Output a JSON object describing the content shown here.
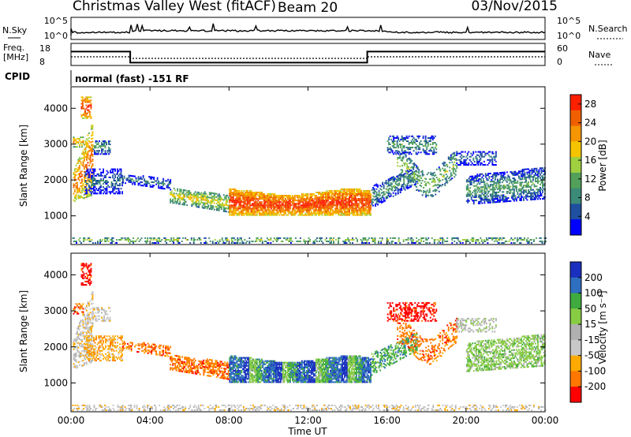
{
  "header": {
    "station": "Christmas Valley West (fitACF)",
    "beam": "Beam 20",
    "date": "03/Nov/2015"
  },
  "noise_panel": {
    "left_label": "N.Sky",
    "right_label": "N.Search",
    "left_ticks": [
      "10^5",
      "10^0"
    ],
    "right_ticks": [
      "10^5",
      "10^0"
    ]
  },
  "freq_panel": {
    "left_label_1": "Freq.",
    "left_label_2": "[MHz]",
    "right_label": "Nave",
    "left_ticks": [
      "18",
      "8"
    ],
    "right_ticks": [
      "60",
      "0"
    ]
  },
  "cpid": {
    "label": "CPID",
    "value": "normal (fast) -151 RF"
  },
  "colors": {
    "power_scale": [
      "#0000ff",
      "#1f4f9f",
      "#3c8a78",
      "#52a05a",
      "#9ed040",
      "#f5c400",
      "#f59600",
      "#f06000",
      "#ff2000"
    ],
    "velocity_scale": [
      "#ff0000",
      "#ff7700",
      "#ffaa00",
      "#c8c8c8",
      "#b0b0b0",
      "#88cc44",
      "#3faa3f",
      "#2f6fbf",
      "#1a2fbf"
    ]
  },
  "chart_data": [
    {
      "type": "heatmap",
      "name_text": "Power panel",
      "ylabel": "Slant Range [km]",
      "yticks": [
        "1000",
        "2000",
        "3000",
        "4000"
      ],
      "ylim": [
        200,
        4600
      ],
      "xlim": [
        "00:00",
        "24:00"
      ],
      "colorbar_label": "Power [dB]",
      "colorbar_ticks": [
        "28",
        "24",
        "20",
        "16",
        "12",
        "8",
        "4"
      ],
      "colorbar_range": [
        0,
        30
      ]
    },
    {
      "type": "heatmap",
      "name_text": "Velocity panel",
      "ylabel": "Slant Range [km]",
      "yticks": [
        "1000",
        "2000",
        "3000",
        "4000"
      ],
      "ylim": [
        200,
        4600
      ],
      "xlim": [
        "00:00",
        "24:00"
      ],
      "xticks": [
        "00:00",
        "04:00",
        "08:00",
        "12:00",
        "16:00",
        "20:00",
        "00:00"
      ],
      "xlabel": "Time UT",
      "colorbar_label": "Velocity [m s⁻¹]",
      "colorbar_ticks": [
        "200",
        "100",
        "50",
        "15",
        "-15",
        "-50",
        "-100",
        "-200"
      ],
      "colorbar_range": [
        -250,
        250
      ]
    }
  ],
  "frequency_series": {
    "times_hr": [
      0,
      3,
      3,
      15,
      15,
      24
    ],
    "freq_mhz": [
      15,
      15,
      10,
      10,
      15,
      15
    ]
  }
}
